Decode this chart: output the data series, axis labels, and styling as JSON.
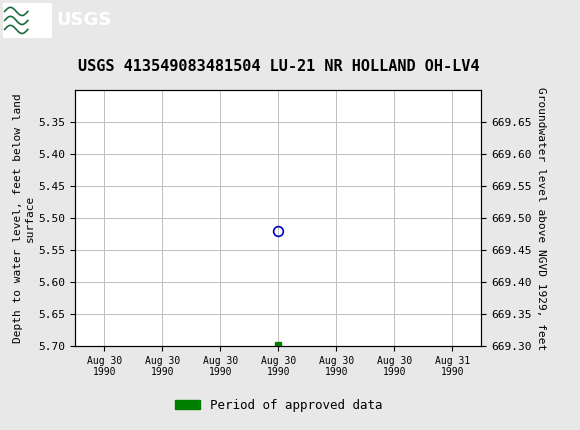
{
  "title": "USGS 413549083481504 LU-21 NR HOLLAND OH-LV4",
  "ylabel_left": "Depth to water level, feet below land\nsurface",
  "ylabel_right": "Groundwater level above NGVD 1929, feet",
  "ylim_left_bottom": 5.7,
  "ylim_left_top": 5.3,
  "ylim_right_bottom": 669.3,
  "ylim_right_top": 669.7,
  "yticks_left": [
    5.35,
    5.4,
    5.45,
    5.5,
    5.55,
    5.6,
    5.65,
    5.7
  ],
  "yticks_right": [
    669.65,
    669.6,
    669.55,
    669.5,
    669.45,
    669.4,
    669.35,
    669.3
  ],
  "xlim_left": -0.5,
  "xlim_right": 6.5,
  "xtick_positions": [
    0,
    1,
    2,
    3,
    4,
    5,
    6
  ],
  "xtick_labels": [
    "Aug 30\n1990",
    "Aug 30\n1990",
    "Aug 30\n1990",
    "Aug 30\n1990",
    "Aug 30\n1990",
    "Aug 30\n1990",
    "Aug 31\n1990"
  ],
  "data_point_x": 3.0,
  "data_point_y": 5.52,
  "data_point_color": "#0000bb",
  "green_square_x": 3.0,
  "green_square_y": 5.698,
  "green_square_color": "#008000",
  "legend_label": "Period of approved data",
  "legend_color": "#008000",
  "header_bg_color": "#1a6b3a",
  "header_text_color": "#ffffff",
  "background_color": "#e8e8e8",
  "plot_bg_color": "#ffffff",
  "grid_color": "#c0c0c0",
  "border_color": "#000000",
  "title_fontsize": 11,
  "axis_label_fontsize": 8,
  "tick_fontsize": 8,
  "legend_fontsize": 9
}
